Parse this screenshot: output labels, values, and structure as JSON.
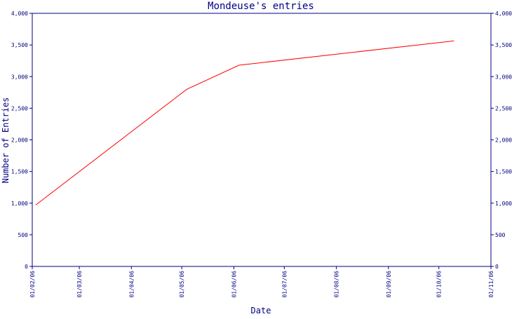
{
  "chart_data": {
    "type": "line",
    "title": "Mondeuse's entries",
    "xlabel": "Date",
    "ylabel": "Number of Entries",
    "x_tick_labels": [
      "01/02/06",
      "01/03/06",
      "01/04/06",
      "01/05/06",
      "01/06/06",
      "01/07/06",
      "01/08/06",
      "01/09/06",
      "01/10/06",
      "01/11/06"
    ],
    "y_tick_labels": [
      "0",
      "500",
      "1,000",
      "1,500",
      "2,000",
      "2,500",
      "3,000",
      "3,500",
      "4,000"
    ],
    "ylim": [
      0,
      4000
    ],
    "right_axis": true,
    "grid": false,
    "series": [
      {
        "color": "#ff0000",
        "points": [
          {
            "x": "2006-02-03",
            "y": 970
          },
          {
            "x": "2006-05-04",
            "y": 2800
          },
          {
            "x": "2006-06-04",
            "y": 3180
          },
          {
            "x": "2006-10-10",
            "y": 3565
          }
        ]
      }
    ],
    "colors": {
      "axis": "#000080",
      "text": "#000080",
      "line": "#ff0000"
    }
  }
}
